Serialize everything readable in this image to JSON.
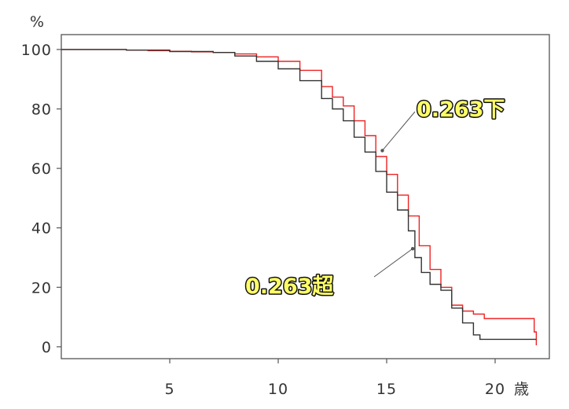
{
  "chart_data": {
    "type": "line",
    "y_unit_label": "%",
    "x_unit_label": "歳",
    "x_ticks": [
      5,
      10,
      15,
      20
    ],
    "y_ticks": [
      0,
      20,
      40,
      60,
      80,
      100
    ],
    "xlim": [
      0,
      22.5
    ],
    "ylim": [
      -4,
      105
    ],
    "grid": false,
    "series": [
      {
        "name": "0.263下",
        "color": "#ee2222",
        "points": [
          [
            0,
            100
          ],
          [
            2,
            100
          ],
          [
            3,
            99.8
          ],
          [
            4,
            99.6
          ],
          [
            5,
            99.4
          ],
          [
            6,
            99.2
          ],
          [
            7,
            99
          ],
          [
            8,
            98.5
          ],
          [
            9,
            97.5
          ],
          [
            10,
            96
          ],
          [
            11,
            93
          ],
          [
            12,
            87.5
          ],
          [
            12.5,
            84
          ],
          [
            13,
            81
          ],
          [
            13.5,
            76
          ],
          [
            14,
            71
          ],
          [
            14.5,
            64
          ],
          [
            15,
            58
          ],
          [
            15.5,
            51
          ],
          [
            16,
            44
          ],
          [
            16.5,
            34
          ],
          [
            17,
            26
          ],
          [
            17.5,
            20
          ],
          [
            18,
            14
          ],
          [
            18.5,
            12
          ],
          [
            19,
            11
          ],
          [
            19.5,
            9.5
          ],
          [
            20,
            9.5
          ],
          [
            21,
            9.5
          ],
          [
            21.8,
            9.5
          ],
          [
            21.8,
            5
          ],
          [
            21.9,
            5
          ],
          [
            21.9,
            0.5
          ]
        ]
      },
      {
        "name": "0.263超",
        "color": "#333333",
        "points": [
          [
            0,
            100
          ],
          [
            3,
            99.8
          ],
          [
            5,
            99.3
          ],
          [
            7,
            99
          ],
          [
            8,
            97.8
          ],
          [
            9,
            96
          ],
          [
            10,
            93.5
          ],
          [
            11,
            89.5
          ],
          [
            12,
            83.5
          ],
          [
            12.5,
            80
          ],
          [
            13,
            76
          ],
          [
            13.5,
            70.5
          ],
          [
            14,
            65.5
          ],
          [
            14.5,
            59
          ],
          [
            15,
            52
          ],
          [
            15.5,
            46
          ],
          [
            16,
            39
          ],
          [
            16.3,
            30
          ],
          [
            16.6,
            25
          ],
          [
            17,
            21
          ],
          [
            17.5,
            19
          ],
          [
            18,
            13
          ],
          [
            18.5,
            8
          ],
          [
            19,
            4
          ],
          [
            19.3,
            2.5
          ],
          [
            20,
            2.5
          ],
          [
            21,
            2.5
          ],
          [
            21.9,
            2.5
          ]
        ]
      }
    ],
    "annotations": [
      {
        "text": "0.263下",
        "series": "0.263下",
        "x": 14.8,
        "y": 66
      },
      {
        "text": "0.263超",
        "series": "0.263超",
        "x": 16.2,
        "y": 33
      }
    ]
  }
}
